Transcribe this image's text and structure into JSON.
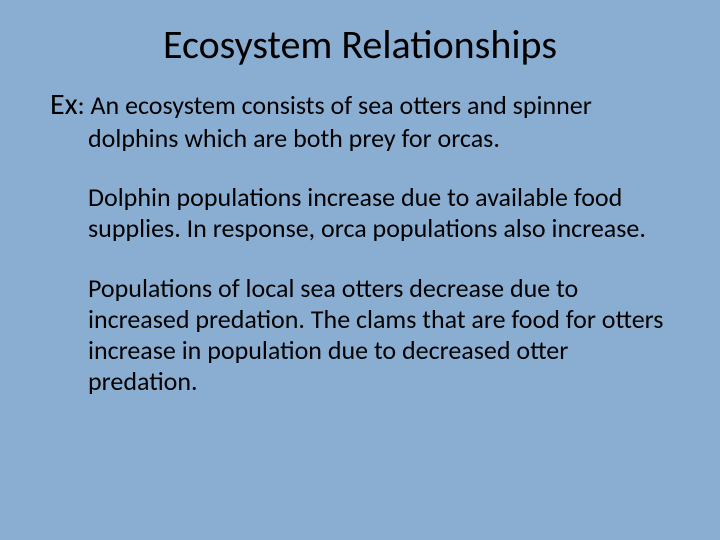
{
  "slide": {
    "background_color": "#8aaed2",
    "text_color": "#000000",
    "font_family": "Calibri",
    "title": {
      "text": "Ecosystem Relationships",
      "fontsize": 40,
      "align": "center"
    },
    "example_label": "Ex",
    "body_fontsize": 26,
    "paragraphs": {
      "p1_firstline": ": An ecosystem consists of sea otters and spinner",
      "p1_rest": "dolphins which are both prey for orcas.",
      "p2": "Dolphin populations increase due to available food supplies. In response, orca populations also increase.",
      "p3": "Populations of local sea otters decrease due to increased predation. The clams that are food for otters increase in population due to decreased otter predation."
    }
  }
}
